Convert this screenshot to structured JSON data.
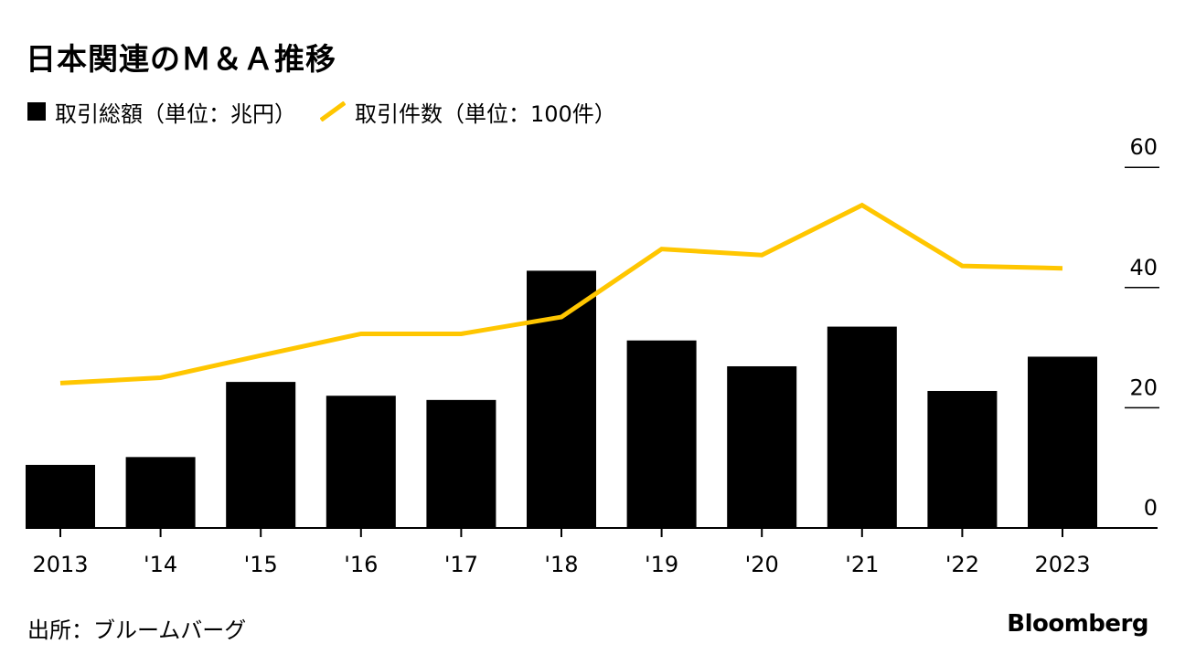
{
  "chart_data": {
    "type": "bar",
    "title": "日本関連のＭ＆Ａ推移",
    "categories": [
      "2013",
      "'14",
      "'15",
      "'16",
      "'17",
      "'18",
      "'19",
      "'20",
      "'21",
      "'22",
      "2023"
    ],
    "series": [
      {
        "name": "取引総額（単位：兆円）",
        "type": "bar",
        "color": "#000000",
        "values": [
          10.5,
          11.8,
          24.3,
          22.0,
          21.3,
          42.8,
          31.2,
          26.9,
          33.5,
          22.8,
          28.5
        ]
      },
      {
        "name": "取引件数（単位：100件）",
        "type": "line",
        "color": "#FFC600",
        "values": [
          24.1,
          25.0,
          28.7,
          32.3,
          32.3,
          35.1,
          46.4,
          45.4,
          53.7,
          43.6,
          43.2
        ]
      }
    ],
    "y_ticks": [
      "60",
      "40",
      "20",
      "0"
    ],
    "ylim": [
      0,
      64
    ],
    "legend_position": "top-left"
  },
  "source_text": "出所：ブルームバーグ",
  "brand": "Bloomberg"
}
